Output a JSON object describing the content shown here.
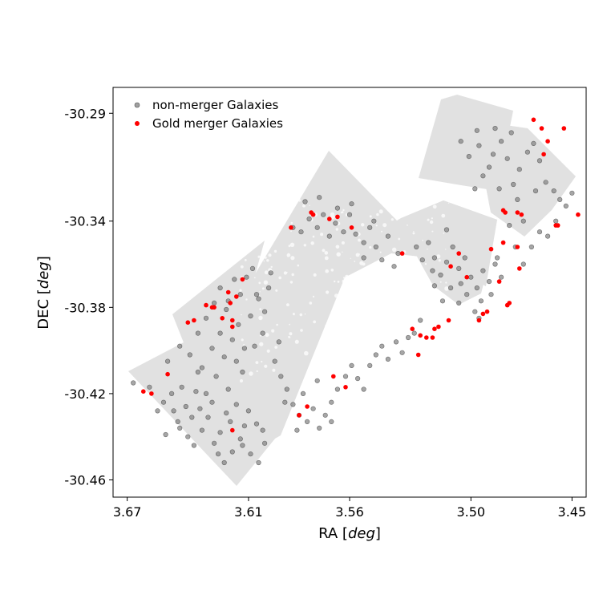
{
  "chart_data": {
    "type": "scatter",
    "title": "",
    "xlabel": "RA",
    "xlabel_unit": "deg",
    "ylabel": "DEC",
    "ylabel_unit": "deg",
    "xlim": [
      3.677,
      3.443
    ],
    "ylim": [
      -30.468,
      -30.278
    ],
    "x_inverted": true,
    "x_ticks": [
      3.67,
      3.61,
      3.56,
      3.5,
      3.45
    ],
    "x_tick_labels": [
      "3.67",
      "3.61",
      "3.56",
      "3.50",
      "3.45"
    ],
    "y_ticks": [
      -30.29,
      -30.34,
      -30.38,
      -30.42,
      -30.46
    ],
    "y_tick_labels": [
      "-30.29",
      "-30.34",
      "-30.38",
      "-30.42",
      "-30.46"
    ],
    "grid": false,
    "legend_position": "top-left",
    "footprint_color": "#e0e0e0",
    "series": [
      {
        "name": "non-merger Galaxies",
        "color": "#808080",
        "marker": "circle",
        "points": [
          [
            3.667,
            -30.415
          ],
          [
            3.659,
            -30.417
          ],
          [
            3.655,
            -30.428
          ],
          [
            3.652,
            -30.424
          ],
          [
            3.648,
            -30.42
          ],
          [
            3.645,
            -30.433
          ],
          [
            3.641,
            -30.426
          ],
          [
            3.638,
            -30.431
          ],
          [
            3.636,
            -30.419
          ],
          [
            3.633,
            -30.437
          ],
          [
            3.63,
            -30.431
          ],
          [
            3.627,
            -30.443
          ],
          [
            3.624,
            -30.438
          ],
          [
            3.621,
            -30.429
          ],
          [
            3.618,
            -30.447
          ],
          [
            3.614,
            -30.441
          ],
          [
            3.612,
            -30.435
          ],
          [
            3.609,
            -30.448
          ],
          [
            3.605,
            -30.452
          ],
          [
            3.602,
            -30.443
          ],
          [
            3.647,
            -30.428
          ],
          [
            3.644,
            -30.436
          ],
          [
            3.64,
            -30.44
          ],
          [
            3.637,
            -30.444
          ],
          [
            3.634,
            -30.427
          ],
          [
            3.631,
            -30.42
          ],
          [
            3.628,
            -30.424
          ],
          [
            3.625,
            -30.448
          ],
          [
            3.622,
            -30.452
          ],
          [
            3.619,
            -30.433
          ],
          [
            3.616,
            -30.425
          ],
          [
            3.613,
            -30.444
          ],
          [
            3.61,
            -30.428
          ],
          [
            3.606,
            -30.434
          ],
          [
            3.603,
            -30.437
          ],
          [
            3.651,
            -30.439
          ],
          [
            3.643,
            -30.417
          ],
          [
            3.635,
            -30.41
          ],
          [
            3.626,
            -30.412
          ],
          [
            3.62,
            -30.418
          ],
          [
            3.65,
            -30.405
          ],
          [
            3.644,
            -30.398
          ],
          [
            3.639,
            -30.402
          ],
          [
            3.635,
            -30.392
          ],
          [
            3.631,
            -30.385
          ],
          [
            3.628,
            -30.399
          ],
          [
            3.624,
            -30.392
          ],
          [
            3.621,
            -30.381
          ],
          [
            3.618,
            -30.395
          ],
          [
            3.615,
            -30.388
          ],
          [
            3.612,
            -30.399
          ],
          [
            3.609,
            -30.384
          ],
          [
            3.606,
            -30.374
          ],
          [
            3.603,
            -30.392
          ],
          [
            3.6,
            -30.371
          ],
          [
            3.627,
            -30.378
          ],
          [
            3.624,
            -30.371
          ],
          [
            3.62,
            -30.377
          ],
          [
            3.617,
            -30.367
          ],
          [
            3.614,
            -30.374
          ],
          [
            3.611,
            -30.366
          ],
          [
            3.608,
            -30.362
          ],
          [
            3.605,
            -30.376
          ],
          [
            3.602,
            -30.382
          ],
          [
            3.599,
            -30.364
          ],
          [
            3.633,
            -30.408
          ],
          [
            3.622,
            -30.403
          ],
          [
            3.616,
            -30.405
          ],
          [
            3.613,
            -30.41
          ],
          [
            3.607,
            -30.398
          ],
          [
            3.588,
            -30.343
          ],
          [
            3.584,
            -30.345
          ],
          [
            3.58,
            -30.339
          ],
          [
            3.576,
            -30.343
          ],
          [
            3.573,
            -30.337
          ],
          [
            3.57,
            -30.347
          ],
          [
            3.567,
            -30.341
          ],
          [
            3.563,
            -30.345
          ],
          [
            3.56,
            -30.337
          ],
          [
            3.557,
            -30.346
          ],
          [
            3.553,
            -30.35
          ],
          [
            3.55,
            -30.343
          ],
          [
            3.547,
            -30.352
          ],
          [
            3.544,
            -30.358
          ],
          [
            3.541,
            -30.347
          ],
          [
            3.538,
            -30.361
          ],
          [
            3.536,
            -30.355
          ],
          [
            3.582,
            -30.331
          ],
          [
            3.575,
            -30.329
          ],
          [
            3.566,
            -30.334
          ],
          [
            3.559,
            -30.332
          ],
          [
            3.548,
            -30.34
          ],
          [
            3.553,
            -30.357
          ],
          [
            3.597,
            -30.405
          ],
          [
            3.594,
            -30.412
          ],
          [
            3.591,
            -30.418
          ],
          [
            3.588,
            -30.425
          ],
          [
            3.585,
            -30.43
          ],
          [
            3.581,
            -30.433
          ],
          [
            3.578,
            -30.427
          ],
          [
            3.575,
            -30.436
          ],
          [
            3.572,
            -30.43
          ],
          [
            3.569,
            -30.424
          ],
          [
            3.566,
            -30.418
          ],
          [
            3.562,
            -30.412
          ],
          [
            3.559,
            -30.407
          ],
          [
            3.556,
            -30.413
          ],
          [
            3.553,
            -30.418
          ],
          [
            3.55,
            -30.407
          ],
          [
            3.547,
            -30.402
          ],
          [
            3.544,
            -30.398
          ],
          [
            3.541,
            -30.404
          ],
          [
            3.537,
            -30.396
          ],
          [
            3.534,
            -30.401
          ],
          [
            3.531,
            -30.394
          ],
          [
            3.528,
            -30.392
          ],
          [
            3.525,
            -30.386
          ],
          [
            3.595,
            -30.396
          ],
          [
            3.592,
            -30.424
          ],
          [
            3.586,
            -30.437
          ],
          [
            3.583,
            -30.42
          ],
          [
            3.576,
            -30.414
          ],
          [
            3.569,
            -30.433
          ],
          [
            3.527,
            -30.352
          ],
          [
            3.524,
            -30.358
          ],
          [
            3.521,
            -30.35
          ],
          [
            3.518,
            -30.357
          ],
          [
            3.515,
            -30.365
          ],
          [
            3.512,
            -30.359
          ],
          [
            3.509,
            -30.352
          ],
          [
            3.506,
            -30.362
          ],
          [
            3.503,
            -30.357
          ],
          [
            3.5,
            -30.366
          ],
          [
            3.497,
            -30.371
          ],
          [
            3.494,
            -30.363
          ],
          [
            3.491,
            -30.368
          ],
          [
            3.488,
            -30.36
          ],
          [
            3.485,
            -30.366
          ],
          [
            3.518,
            -30.37
          ],
          [
            3.514,
            -30.377
          ],
          [
            3.51,
            -30.371
          ],
          [
            3.506,
            -30.378
          ],
          [
            3.502,
            -30.374
          ],
          [
            3.498,
            -30.382
          ],
          [
            3.495,
            -30.377
          ],
          [
            3.49,
            -30.374
          ],
          [
            3.487,
            -30.357
          ],
          [
            3.512,
            -30.344
          ],
          [
            3.519,
            -30.363
          ],
          [
            3.505,
            -30.369
          ],
          [
            3.496,
            -30.385
          ],
          [
            3.505,
            -30.303
          ],
          [
            3.501,
            -30.31
          ],
          [
            3.497,
            -30.298
          ],
          [
            3.494,
            -30.319
          ],
          [
            3.491,
            -30.315
          ],
          [
            3.488,
            -30.297
          ],
          [
            3.485,
            -30.303
          ],
          [
            3.482,
            -30.311
          ],
          [
            3.479,
            -30.323
          ],
          [
            3.476,
            -30.316
          ],
          [
            3.472,
            -30.308
          ],
          [
            3.469,
            -30.304
          ],
          [
            3.466,
            -30.312
          ],
          [
            3.463,
            -30.322
          ],
          [
            3.459,
            -30.326
          ],
          [
            3.456,
            -30.33
          ],
          [
            3.453,
            -30.333
          ],
          [
            3.45,
            -30.327
          ],
          [
            3.498,
            -30.325
          ],
          [
            3.486,
            -30.325
          ],
          [
            3.477,
            -30.33
          ],
          [
            3.468,
            -30.326
          ],
          [
            3.474,
            -30.34
          ],
          [
            3.466,
            -30.345
          ],
          [
            3.462,
            -30.347
          ],
          [
            3.47,
            -30.352
          ],
          [
            3.478,
            -30.352
          ],
          [
            3.474,
            -30.36
          ],
          [
            3.481,
            -30.342
          ],
          [
            3.458,
            -30.34
          ],
          [
            3.496,
            -30.305
          ],
          [
            3.489,
            -30.309
          ],
          [
            3.48,
            -30.299
          ]
        ]
      },
      {
        "name": "Gold merger Galaxies",
        "color": "#ff0000",
        "marker": "circle",
        "points": [
          [
            3.662,
            -30.419
          ],
          [
            3.658,
            -30.42
          ],
          [
            3.65,
            -30.411
          ],
          [
            3.64,
            -30.387
          ],
          [
            3.637,
            -30.386
          ],
          [
            3.631,
            -30.379
          ],
          [
            3.628,
            -30.38
          ],
          [
            3.627,
            -30.38
          ],
          [
            3.623,
            -30.385
          ],
          [
            3.62,
            -30.373
          ],
          [
            3.619,
            -30.378
          ],
          [
            3.618,
            -30.386
          ],
          [
            3.618,
            -30.389
          ],
          [
            3.616,
            -30.375
          ],
          [
            3.613,
            -30.367
          ],
          [
            3.618,
            -30.437
          ],
          [
            3.589,
            -30.343
          ],
          [
            3.579,
            -30.336
          ],
          [
            3.578,
            -30.337
          ],
          [
            3.57,
            -30.339
          ],
          [
            3.566,
            -30.338
          ],
          [
            3.559,
            -30.343
          ],
          [
            3.585,
            -30.43
          ],
          [
            3.581,
            -30.426
          ],
          [
            3.568,
            -30.412
          ],
          [
            3.562,
            -30.417
          ],
          [
            3.534,
            -30.355
          ],
          [
            3.529,
            -30.39
          ],
          [
            3.526,
            -30.402
          ],
          [
            3.525,
            -30.393
          ],
          [
            3.522,
            -30.394
          ],
          [
            3.519,
            -30.394
          ],
          [
            3.518,
            -30.39
          ],
          [
            3.516,
            -30.389
          ],
          [
            3.511,
            -30.386
          ],
          [
            3.51,
            -30.361
          ],
          [
            3.506,
            -30.355
          ],
          [
            3.502,
            -30.366
          ],
          [
            3.496,
            -30.386
          ],
          [
            3.494,
            -30.383
          ],
          [
            3.492,
            -30.382
          ],
          [
            3.49,
            -30.353
          ],
          [
            3.486,
            -30.368
          ],
          [
            3.484,
            -30.35
          ],
          [
            3.482,
            -30.379
          ],
          [
            3.481,
            -30.378
          ],
          [
            3.477,
            -30.352
          ],
          [
            3.476,
            -30.362
          ],
          [
            3.484,
            -30.335
          ],
          [
            3.483,
            -30.336
          ],
          [
            3.477,
            -30.336
          ],
          [
            3.475,
            -30.337
          ],
          [
            3.469,
            -30.293
          ],
          [
            3.465,
            -30.297
          ],
          [
            3.462,
            -30.303
          ],
          [
            3.464,
            -30.309
          ],
          [
            3.458,
            -30.342
          ],
          [
            3.457,
            -30.342
          ],
          [
            3.454,
            -30.297
          ],
          [
            3.447,
            -30.337
          ],
          [
            3.44,
            -30.335
          ]
        ]
      }
    ]
  }
}
